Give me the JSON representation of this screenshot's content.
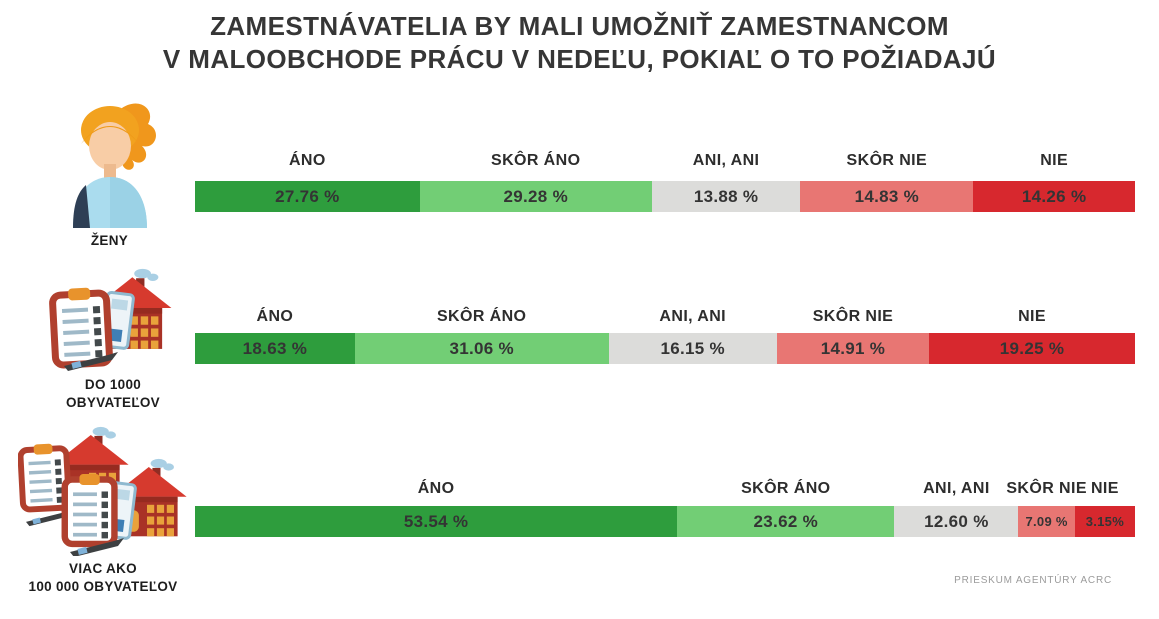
{
  "title": {
    "line1": "ZAMESTNÁVATELIA BY MALI UMOŽNIŤ ZAMESTNANCOM",
    "line2": "V MALOOBCHODE PRÁCU V NEDEĽU, POKIAĽ O TO POŽIADAJÚ"
  },
  "footer": "PRIESKUM AGENTÚRY ACRC",
  "chart_data": {
    "type": "bar",
    "variant": "horizontal-stacked",
    "unit": "%",
    "grid": false,
    "legend_position": "labels-above-each-segment",
    "categories": [
      "ÁNO",
      "SKÔR ÁNO",
      "ANI, ANI",
      "SKÔR NIE",
      "NIE"
    ],
    "segment_colors": [
      "#2e9d3d",
      "#72ce75",
      "#dcdcda",
      "#e87673",
      "#d7282e"
    ],
    "rows": [
      {
        "group": "ŽENY",
        "group_lines": [
          "ŽENY"
        ],
        "icon": "woman-icon",
        "values": [
          27.76,
          29.28,
          13.88,
          14.83,
          14.26
        ],
        "labels": [
          "27.76 %",
          "29.28 %",
          "13.88 %",
          "14.83 %",
          "14.26 %"
        ],
        "display_widths": [
          23.9,
          24.7,
          15.8,
          18.4,
          17.2
        ]
      },
      {
        "group": "DO 1000 OBYVATEĽOV",
        "group_lines": [
          "DO 1000",
          "OBYVATEĽOV"
        ],
        "icon": "village-icon",
        "values": [
          18.63,
          31.06,
          16.15,
          14.91,
          19.25
        ],
        "labels": [
          "18.63 %",
          "31.06 %",
          "16.15 %",
          "14.91 %",
          "19.25 %"
        ],
        "display_widths": [
          17.0,
          27.0,
          17.9,
          16.2,
          21.9
        ]
      },
      {
        "group": "VIAC AKO 100 000 OBYVATEĽOV",
        "group_lines": [
          "VIAC AKO",
          "100 000 OBYVATEĽOV"
        ],
        "icon": "city-icon",
        "values": [
          53.54,
          23.62,
          12.6,
          7.09,
          3.15
        ],
        "labels": [
          "53.54 %",
          "23.62 %",
          "12.60 %",
          "7.09 %",
          "3.15%"
        ],
        "display_widths": [
          51.3,
          23.1,
          13.2,
          6.0,
          6.4
        ]
      }
    ]
  }
}
